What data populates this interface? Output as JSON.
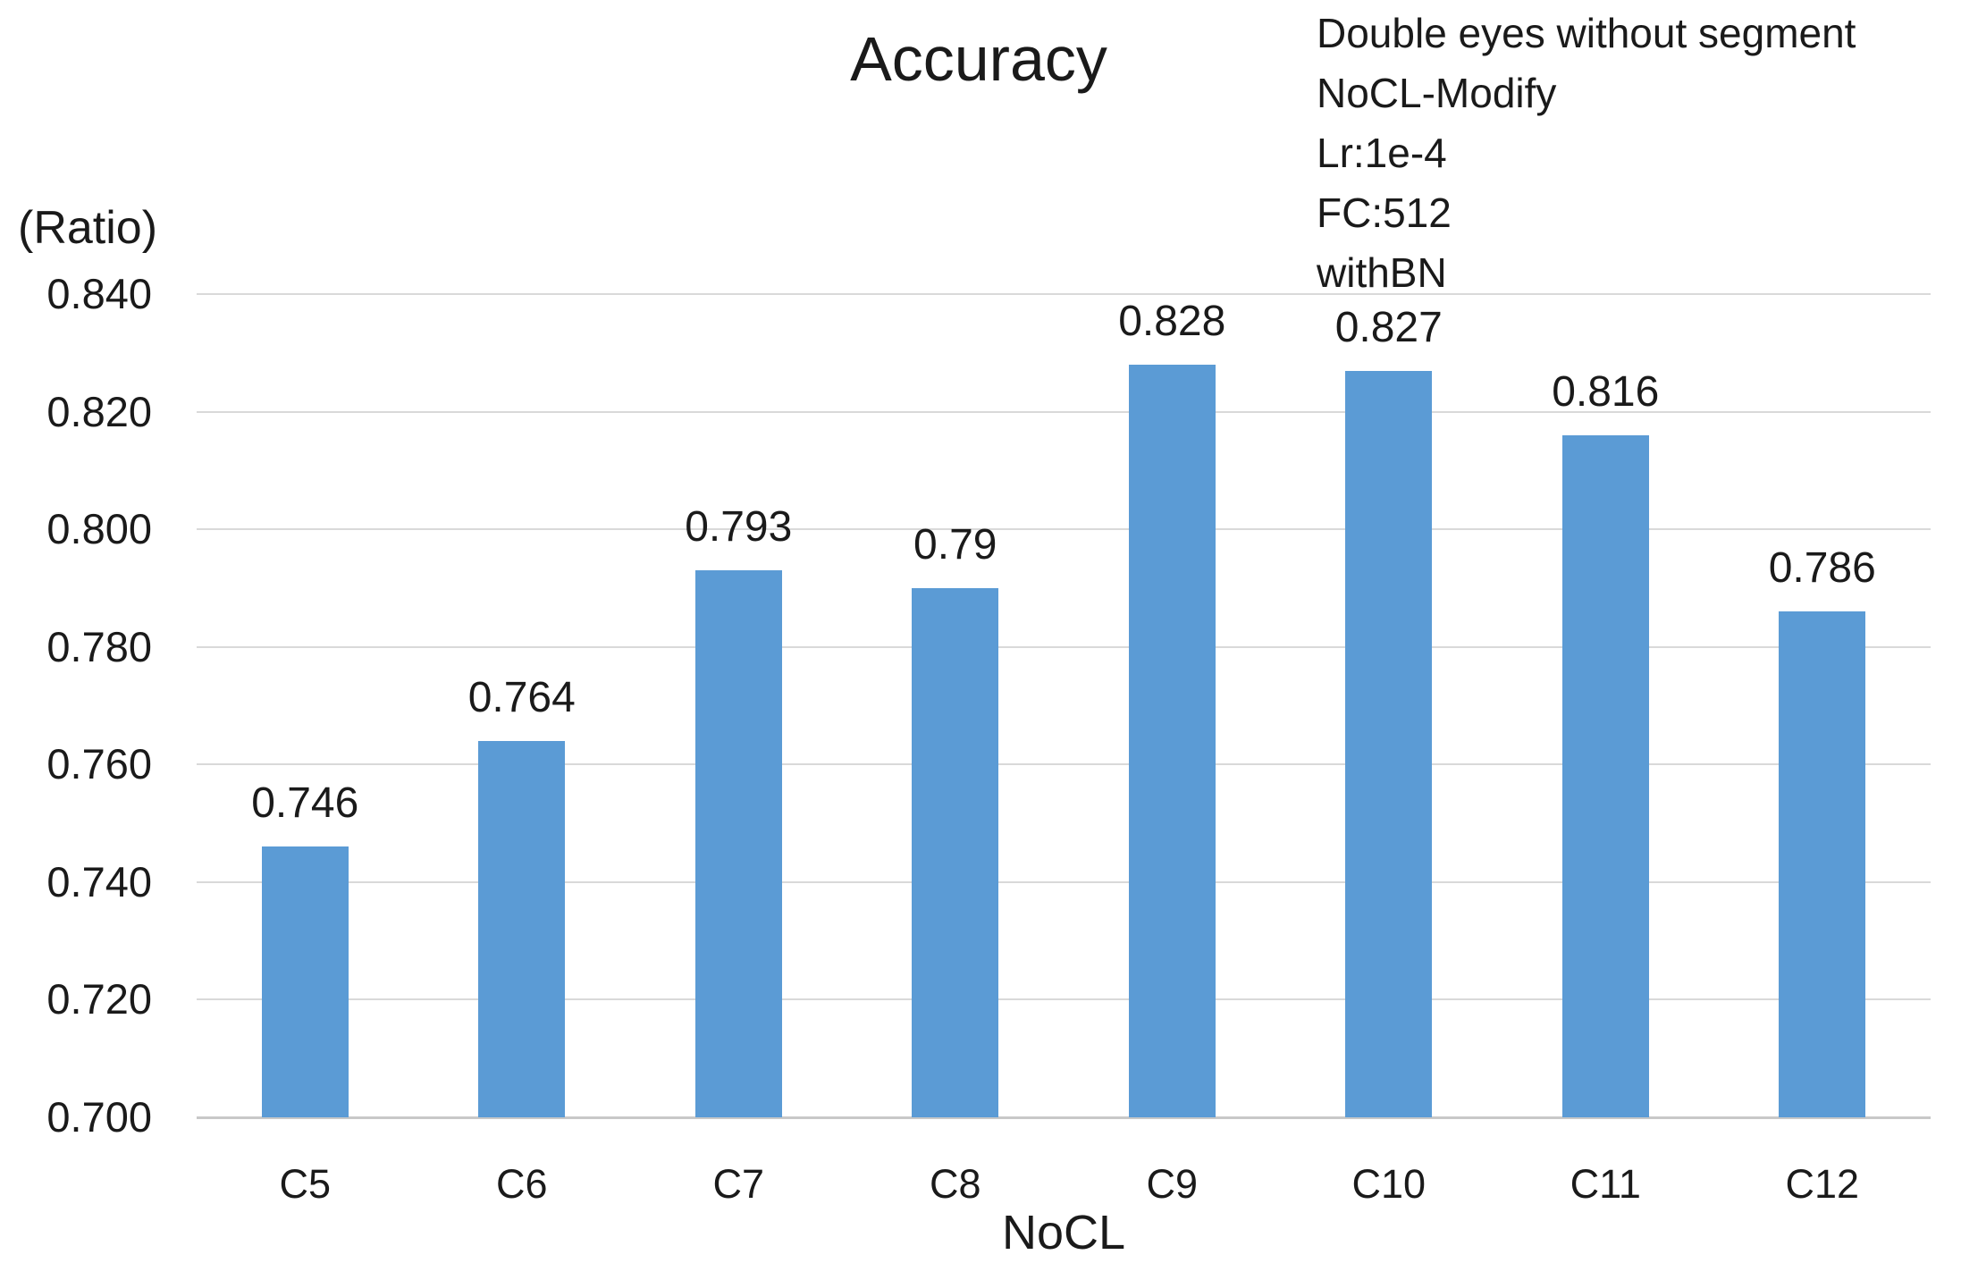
{
  "chart_data": {
    "type": "bar",
    "title": "Accuracy",
    "ylabel": "(Ratio)",
    "xlabel": "NoCL",
    "categories": [
      "C5",
      "C6",
      "C7",
      "C8",
      "C9",
      "C10",
      "C11",
      "C12"
    ],
    "values": [
      0.746,
      0.764,
      0.793,
      0.79,
      0.828,
      0.827,
      0.816,
      0.786
    ],
    "value_labels": [
      "0.746",
      "0.764",
      "0.793",
      "0.79",
      "0.828",
      "0.827",
      "0.816",
      "0.786"
    ],
    "ylim": [
      0.7,
      0.84
    ],
    "ytick_labels": [
      "0.700",
      "0.720",
      "0.740",
      "0.760",
      "0.780",
      "0.800",
      "0.820",
      "0.840"
    ],
    "grid": true,
    "legend": "none",
    "annotation_lines": [
      "Double eyes without segment",
      "NoCL-Modify",
      "Lr:1e-4",
      "FC:512",
      "withBN"
    ],
    "colors": {
      "bar": "#5B9BD5",
      "gridline": "#D9D9D9",
      "axis_line": "#C8C8C8",
      "text": "#1a1a1a"
    }
  }
}
